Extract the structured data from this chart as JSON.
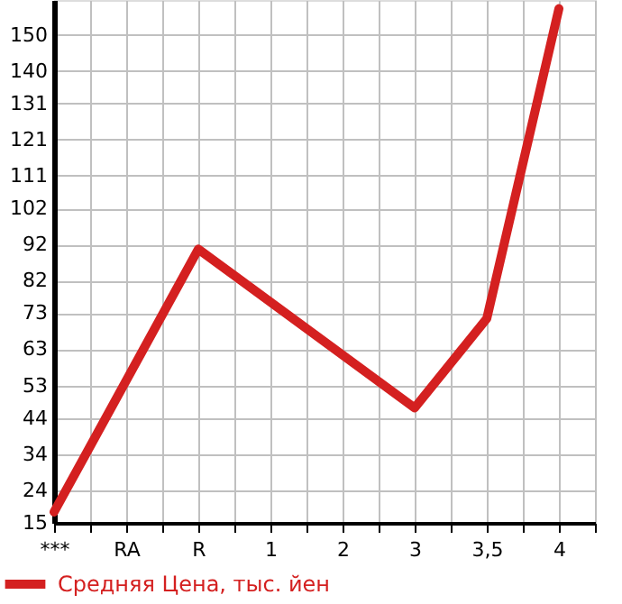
{
  "chart_data": {
    "type": "line",
    "categories": [
      "***",
      "RA",
      "R",
      "1",
      "2",
      "3",
      "3,5",
      "4"
    ],
    "series": [
      {
        "name": "Средняя Цена, тыс. йен",
        "color": "#d42020",
        "values": [
          18,
          null,
          90.7,
          null,
          null,
          46.8,
          71.5,
          157.2
        ]
      }
    ],
    "ylim": [
      15,
      159.6
    ],
    "yticks": [
      15,
      24,
      34,
      44,
      53,
      63,
      73,
      82,
      92,
      102,
      111,
      121,
      131,
      140,
      150
    ],
    "grid": true,
    "legend": "bottom",
    "marker": "none",
    "line_style": "solid"
  }
}
